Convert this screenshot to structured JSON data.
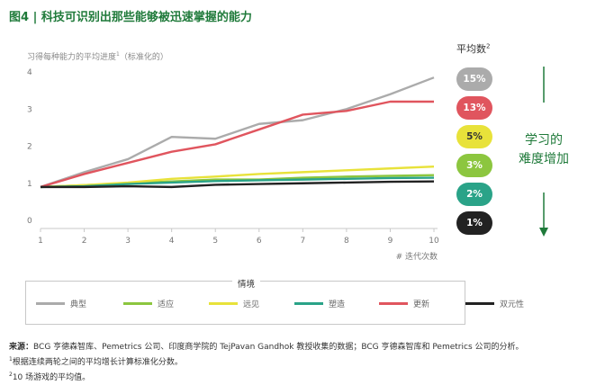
{
  "title": "图4 | 科技可识别出那些能够被迅速掌握的能力",
  "chart_data": {
    "type": "line",
    "subtitle": "习得每种能力的平均进度",
    "subtitle_sup": "1",
    "subtitle_suffix": "（标准化的）",
    "xlabel": "# 迭代次数",
    "x": [
      1,
      2,
      3,
      4,
      5,
      6,
      7,
      8,
      9,
      10
    ],
    "xlim": [
      1,
      10
    ],
    "ylim": [
      0,
      4
    ],
    "x_ticks": [
      "1",
      "2",
      "3",
      "4",
      "5",
      "6",
      "7",
      "8",
      "9",
      "10"
    ],
    "y_ticks": [
      "0",
      "1",
      "2",
      "3",
      "4"
    ],
    "grid": false,
    "series": [
      {
        "name": "典型",
        "color": "#ababab",
        "values": [
          0.9,
          1.3,
          1.65,
          2.25,
          2.2,
          2.6,
          2.7,
          3.0,
          3.4,
          3.85
        ]
      },
      {
        "name": "适应",
        "color": "#8cc63f",
        "values": [
          0.9,
          0.95,
          1.0,
          1.05,
          1.1,
          1.1,
          1.15,
          1.18,
          1.2,
          1.22
        ]
      },
      {
        "name": "远见",
        "color": "#e8e23a",
        "values": [
          0.9,
          0.95,
          1.02,
          1.12,
          1.18,
          1.25,
          1.3,
          1.35,
          1.4,
          1.45
        ]
      },
      {
        "name": "塑造",
        "color": "#2aa388",
        "values": [
          0.9,
          0.92,
          0.98,
          1.02,
          1.06,
          1.08,
          1.1,
          1.12,
          1.14,
          1.15
        ]
      },
      {
        "name": "更新",
        "color": "#e0555e",
        "values": [
          0.9,
          1.25,
          1.55,
          1.85,
          2.05,
          2.45,
          2.85,
          2.95,
          3.2,
          3.2
        ]
      },
      {
        "name": "双元性",
        "color": "#222222",
        "values": [
          0.9,
          0.9,
          0.92,
          0.9,
          0.96,
          0.98,
          1.0,
          1.02,
          1.04,
          1.05
        ]
      }
    ]
  },
  "legend_title": "情境",
  "avg": {
    "title": "平均数",
    "title_sup": "2",
    "rates": [
      {
        "label": "15%",
        "bg": "#ababab",
        "fg": "#ffffff"
      },
      {
        "label": "13%",
        "bg": "#e0555e",
        "fg": "#ffffff"
      },
      {
        "label": "5%",
        "bg": "#e8e23a",
        "fg": "#333333"
      },
      {
        "label": "3%",
        "bg": "#8cc63f",
        "fg": "#ffffff"
      },
      {
        "label": "2%",
        "bg": "#2aa388",
        "fg": "#ffffff"
      },
      {
        "label": "1%",
        "bg": "#222222",
        "fg": "#ffffff"
      }
    ]
  },
  "learning": {
    "line1": "学习的",
    "line2": "难度增加",
    "color": "#1f7a3a"
  },
  "source": {
    "label": "来源：",
    "text": "BCG 亨德森智库、Pemetrics 公司、印度商学院的 TejPavan Gandhok 教授收集的数据；BCG 亨德森智库和 Pemetrics 公司的分析。",
    "note1_mark": "1",
    "note1": "根据连续两轮之间的平均增长计算标准化分数。",
    "note2_mark": "2",
    "note2": "10 场游戏的平均值。"
  }
}
